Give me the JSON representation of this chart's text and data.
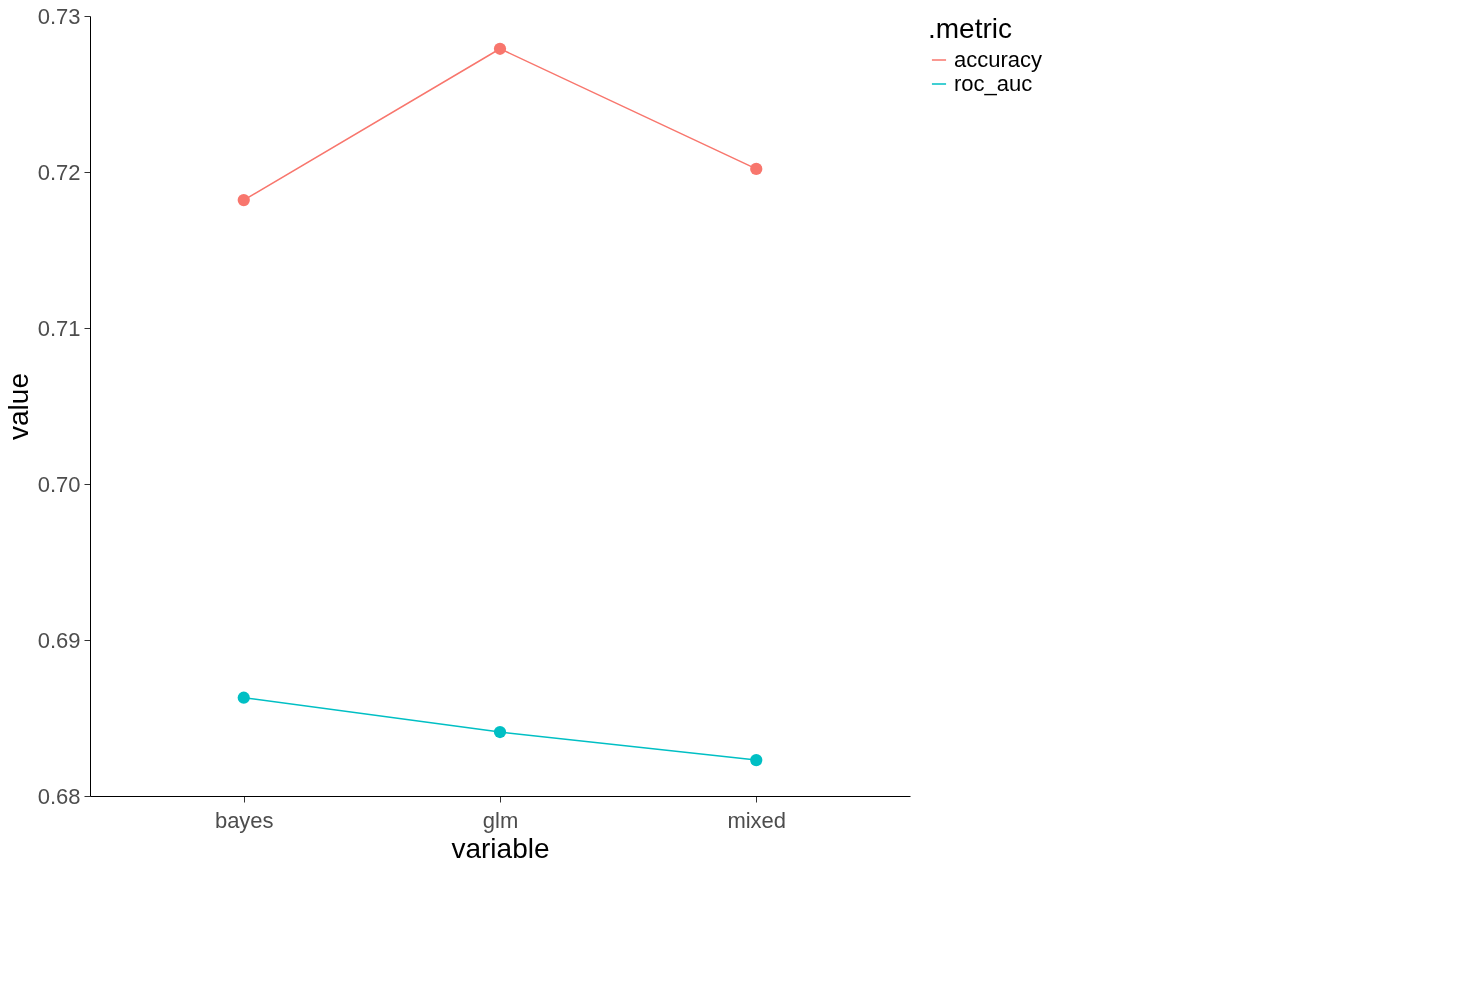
{
  "chart_data": {
    "type": "line",
    "xlabel": "variable",
    "ylabel": "value",
    "legend_title": ".metric",
    "categories": [
      "bayes",
      "glm",
      "mixed"
    ],
    "series": [
      {
        "name": "accuracy",
        "color": "#f8766d",
        "values": [
          0.7182,
          0.7279,
          0.7202
        ]
      },
      {
        "name": "roc_auc",
        "color": "#00bfc4",
        "values": [
          0.6863,
          0.6841,
          0.6823
        ]
      }
    ],
    "ylim": [
      0.68,
      0.73
    ],
    "yticks": [
      0.68,
      0.69,
      {
        "value": 0.7,
        "label": "0.70"
      },
      0.71,
      0.72,
      0.73
    ],
    "grid": false,
    "legend": "right",
    "marker": "circle",
    "line_style": "solid"
  }
}
